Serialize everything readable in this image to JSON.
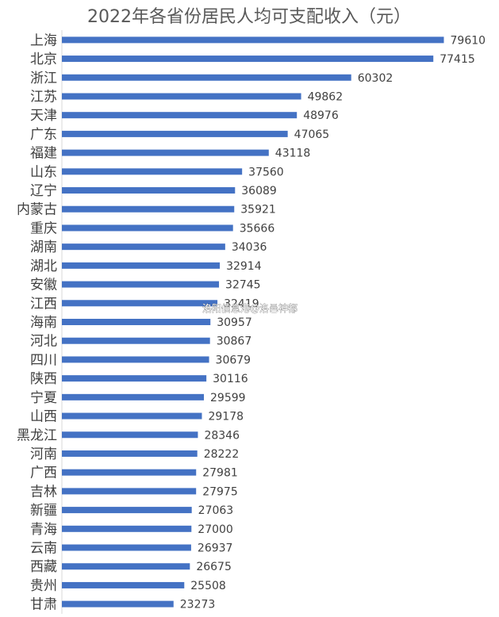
{
  "chart_data": {
    "type": "bar",
    "orientation": "horizontal",
    "title": "2022年各省份居民人均可支配收入（元）",
    "categories": [
      "上海",
      "北京",
      "浙江",
      "江苏",
      "天津",
      "广东",
      "福建",
      "山东",
      "辽宁",
      "内蒙古",
      "重庆",
      "湖南",
      "湖北",
      "安徽",
      "江西",
      "海南",
      "河北",
      "四川",
      "陕西",
      "宁夏",
      "山西",
      "黑龙江",
      "河南",
      "广西",
      "吉林",
      "新疆",
      "青海",
      "云南",
      "西藏",
      "贵州",
      "甘肃"
    ],
    "values": [
      79610,
      77415,
      60302,
      49862,
      48976,
      47065,
      43118,
      37560,
      36089,
      35921,
      35666,
      34036,
      32914,
      32745,
      32419,
      30957,
      30867,
      30679,
      30116,
      29599,
      29178,
      28346,
      28222,
      27981,
      27975,
      27063,
      27000,
      26937,
      26675,
      25508,
      23273
    ],
    "xlim": [
      0,
      80000
    ],
    "grid": false,
    "bar_color": "#4472C4",
    "data_labels": true
  },
  "watermark": "洛阳信息港@洛邑神都"
}
